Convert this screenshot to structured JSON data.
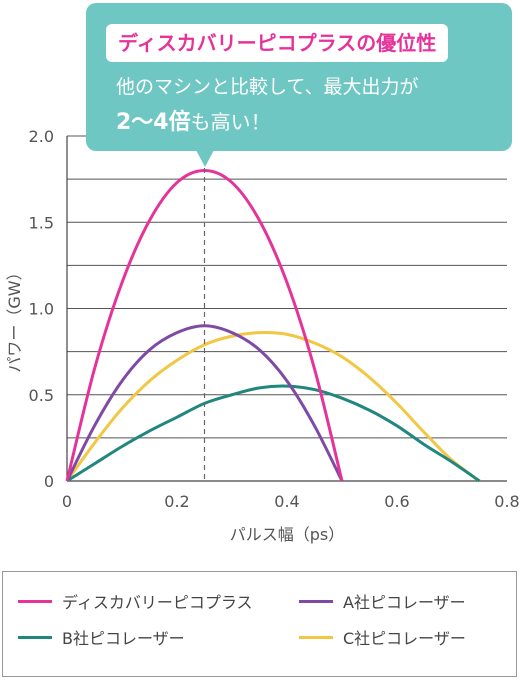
{
  "callout": {
    "title": "ディスカバリーピコプラスの優位性",
    "line1": "他のマシンと比較して、最大出力が",
    "line2_bold": "2〜4倍",
    "line2_rest": "も高い！"
  },
  "chart_data": {
    "type": "line",
    "xlabel": "パルス幅（ps）",
    "ylabel": "パワー（GW）",
    "xlim": [
      0,
      0.8
    ],
    "ylim": [
      0,
      2.0
    ],
    "x_ticks": [
      "0",
      "0.2",
      "0.4",
      "0.6",
      "0.8"
    ],
    "y_ticks": [
      "0",
      "0.5",
      "1.0",
      "1.5",
      "2.0"
    ],
    "grid": "horizontal",
    "legend_position": "bottom",
    "reference_line": {
      "x": 0.25,
      "style": "dashed"
    },
    "series": [
      {
        "name": "ディスカバリーピコプラス",
        "color": "#e6339a",
        "x": [
          0,
          0.05,
          0.1,
          0.15,
          0.2,
          0.25,
          0.3,
          0.35,
          0.4,
          0.45,
          0.5
        ],
        "y": [
          0,
          0.65,
          1.15,
          1.51,
          1.73,
          1.8,
          1.73,
          1.51,
          1.15,
          0.65,
          0
        ]
      },
      {
        "name": "A社ピコレーザー",
        "color": "#7e4aa6",
        "x": [
          0,
          0.05,
          0.1,
          0.15,
          0.2,
          0.25,
          0.3,
          0.35,
          0.4,
          0.45,
          0.5
        ],
        "y": [
          0,
          0.32,
          0.58,
          0.76,
          0.86,
          0.9,
          0.86,
          0.76,
          0.58,
          0.32,
          0
        ]
      },
      {
        "name": "B社ピコレーザー",
        "color": "#21877e",
        "x": [
          0,
          0.05,
          0.1,
          0.15,
          0.2,
          0.25,
          0.3,
          0.35,
          0.4,
          0.45,
          0.5,
          0.55,
          0.6,
          0.65,
          0.7,
          0.75
        ],
        "y": [
          0,
          0.1,
          0.2,
          0.29,
          0.37,
          0.45,
          0.5,
          0.54,
          0.55,
          0.53,
          0.48,
          0.41,
          0.32,
          0.21,
          0.11,
          0
        ]
      },
      {
        "name": "C社ピコレーザー",
        "color": "#f2c744",
        "x": [
          0,
          0.05,
          0.1,
          0.15,
          0.2,
          0.25,
          0.3,
          0.35,
          0.4,
          0.45,
          0.5,
          0.55,
          0.6,
          0.65,
          0.7,
          0.75
        ],
        "y": [
          0,
          0.22,
          0.42,
          0.58,
          0.7,
          0.79,
          0.84,
          0.86,
          0.85,
          0.8,
          0.72,
          0.6,
          0.45,
          0.28,
          0.12,
          0
        ]
      }
    ]
  }
}
